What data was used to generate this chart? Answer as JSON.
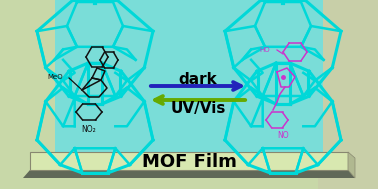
{
  "bg_color_left": "#c8d8a8",
  "bg_color_right": "#c8cfa8",
  "center_bg": "#7addd8",
  "mof_film_top_color": "#d8e8b0",
  "mof_film_side_color": "#b0b890",
  "mof_film_shadow": "#606858",
  "mof_film_label": "MOF Film",
  "mof_film_fontsize": 13,
  "arrow_dark_color": "#2222bb",
  "arrow_uv_color": "#66aa00",
  "arrow_dark_label": "dark",
  "arrow_uv_label": "UV/Vis",
  "arrow_label_fontsize": 11,
  "cage_color": "#00d8d8",
  "cage_lw": 2.0,
  "sp_left_color": "#111111",
  "sp_right_color": "#cc33cc"
}
